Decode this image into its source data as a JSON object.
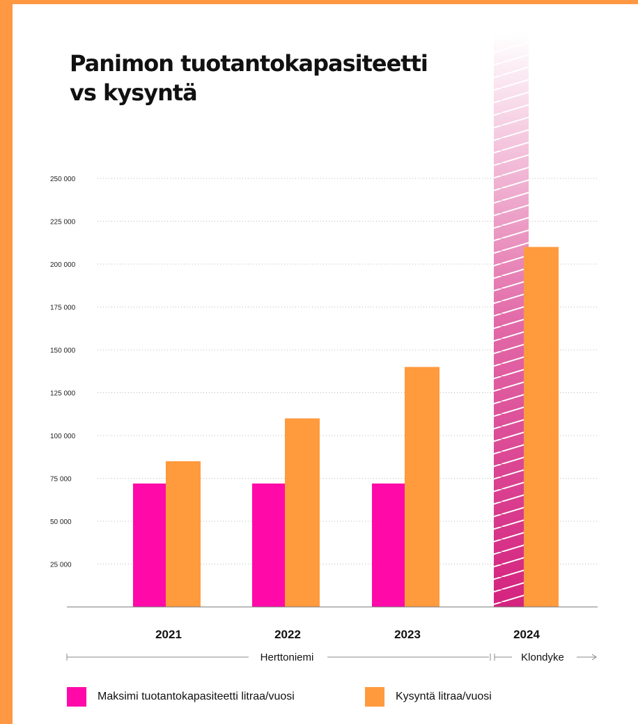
{
  "title": "Panimon tuotantokapasiteetti vs kysyntä",
  "title_line1": "Panimon tuotantokapasiteetti",
  "title_line2": "vs kysyntä",
  "colors": {
    "page_border": "#ff9843",
    "capacity": "#ff0aa8",
    "demand": "#ff9a3d",
    "projected_capacity": "#d4237f"
  },
  "chart_data": {
    "type": "bar",
    "categories": [
      "2021",
      "2022",
      "2023",
      "2024"
    ],
    "series": [
      {
        "name": "Maksimi tuotantokapasiteetti litraa/vuosi",
        "values": [
          72000,
          72000,
          72000,
          null
        ],
        "color": "#ff0aa8"
      },
      {
        "name": "Kysyntä litraa/vuosi",
        "values": [
          85000,
          110000,
          140000,
          210000
        ],
        "color": "#ff9a3d"
      }
    ],
    "projected_capacity_2024": "open-ended gradient bar extending beyond top of axis",
    "ylim": [
      0,
      250000
    ],
    "yticks": [
      25000,
      50000,
      75000,
      100000,
      125000,
      150000,
      175000,
      200000,
      225000,
      250000
    ],
    "ytick_labels": [
      "25 000",
      "50 000",
      "75 000",
      "100 000",
      "125 000",
      "150 000",
      "175 000",
      "200 000",
      "225 000",
      "250 000"
    ],
    "grid": "dotted horizontal",
    "legend_position": "bottom",
    "locations": [
      {
        "label": "Herttoniemi",
        "years": [
          "2021",
          "2022",
          "2023"
        ]
      },
      {
        "label": "Klondyke",
        "years": [
          "2024"
        ]
      }
    ]
  },
  "legend": {
    "capacity": "Maksimi tuotantokapasiteetti litraa/vuosi",
    "demand": "Kysyntä litraa/vuosi"
  }
}
